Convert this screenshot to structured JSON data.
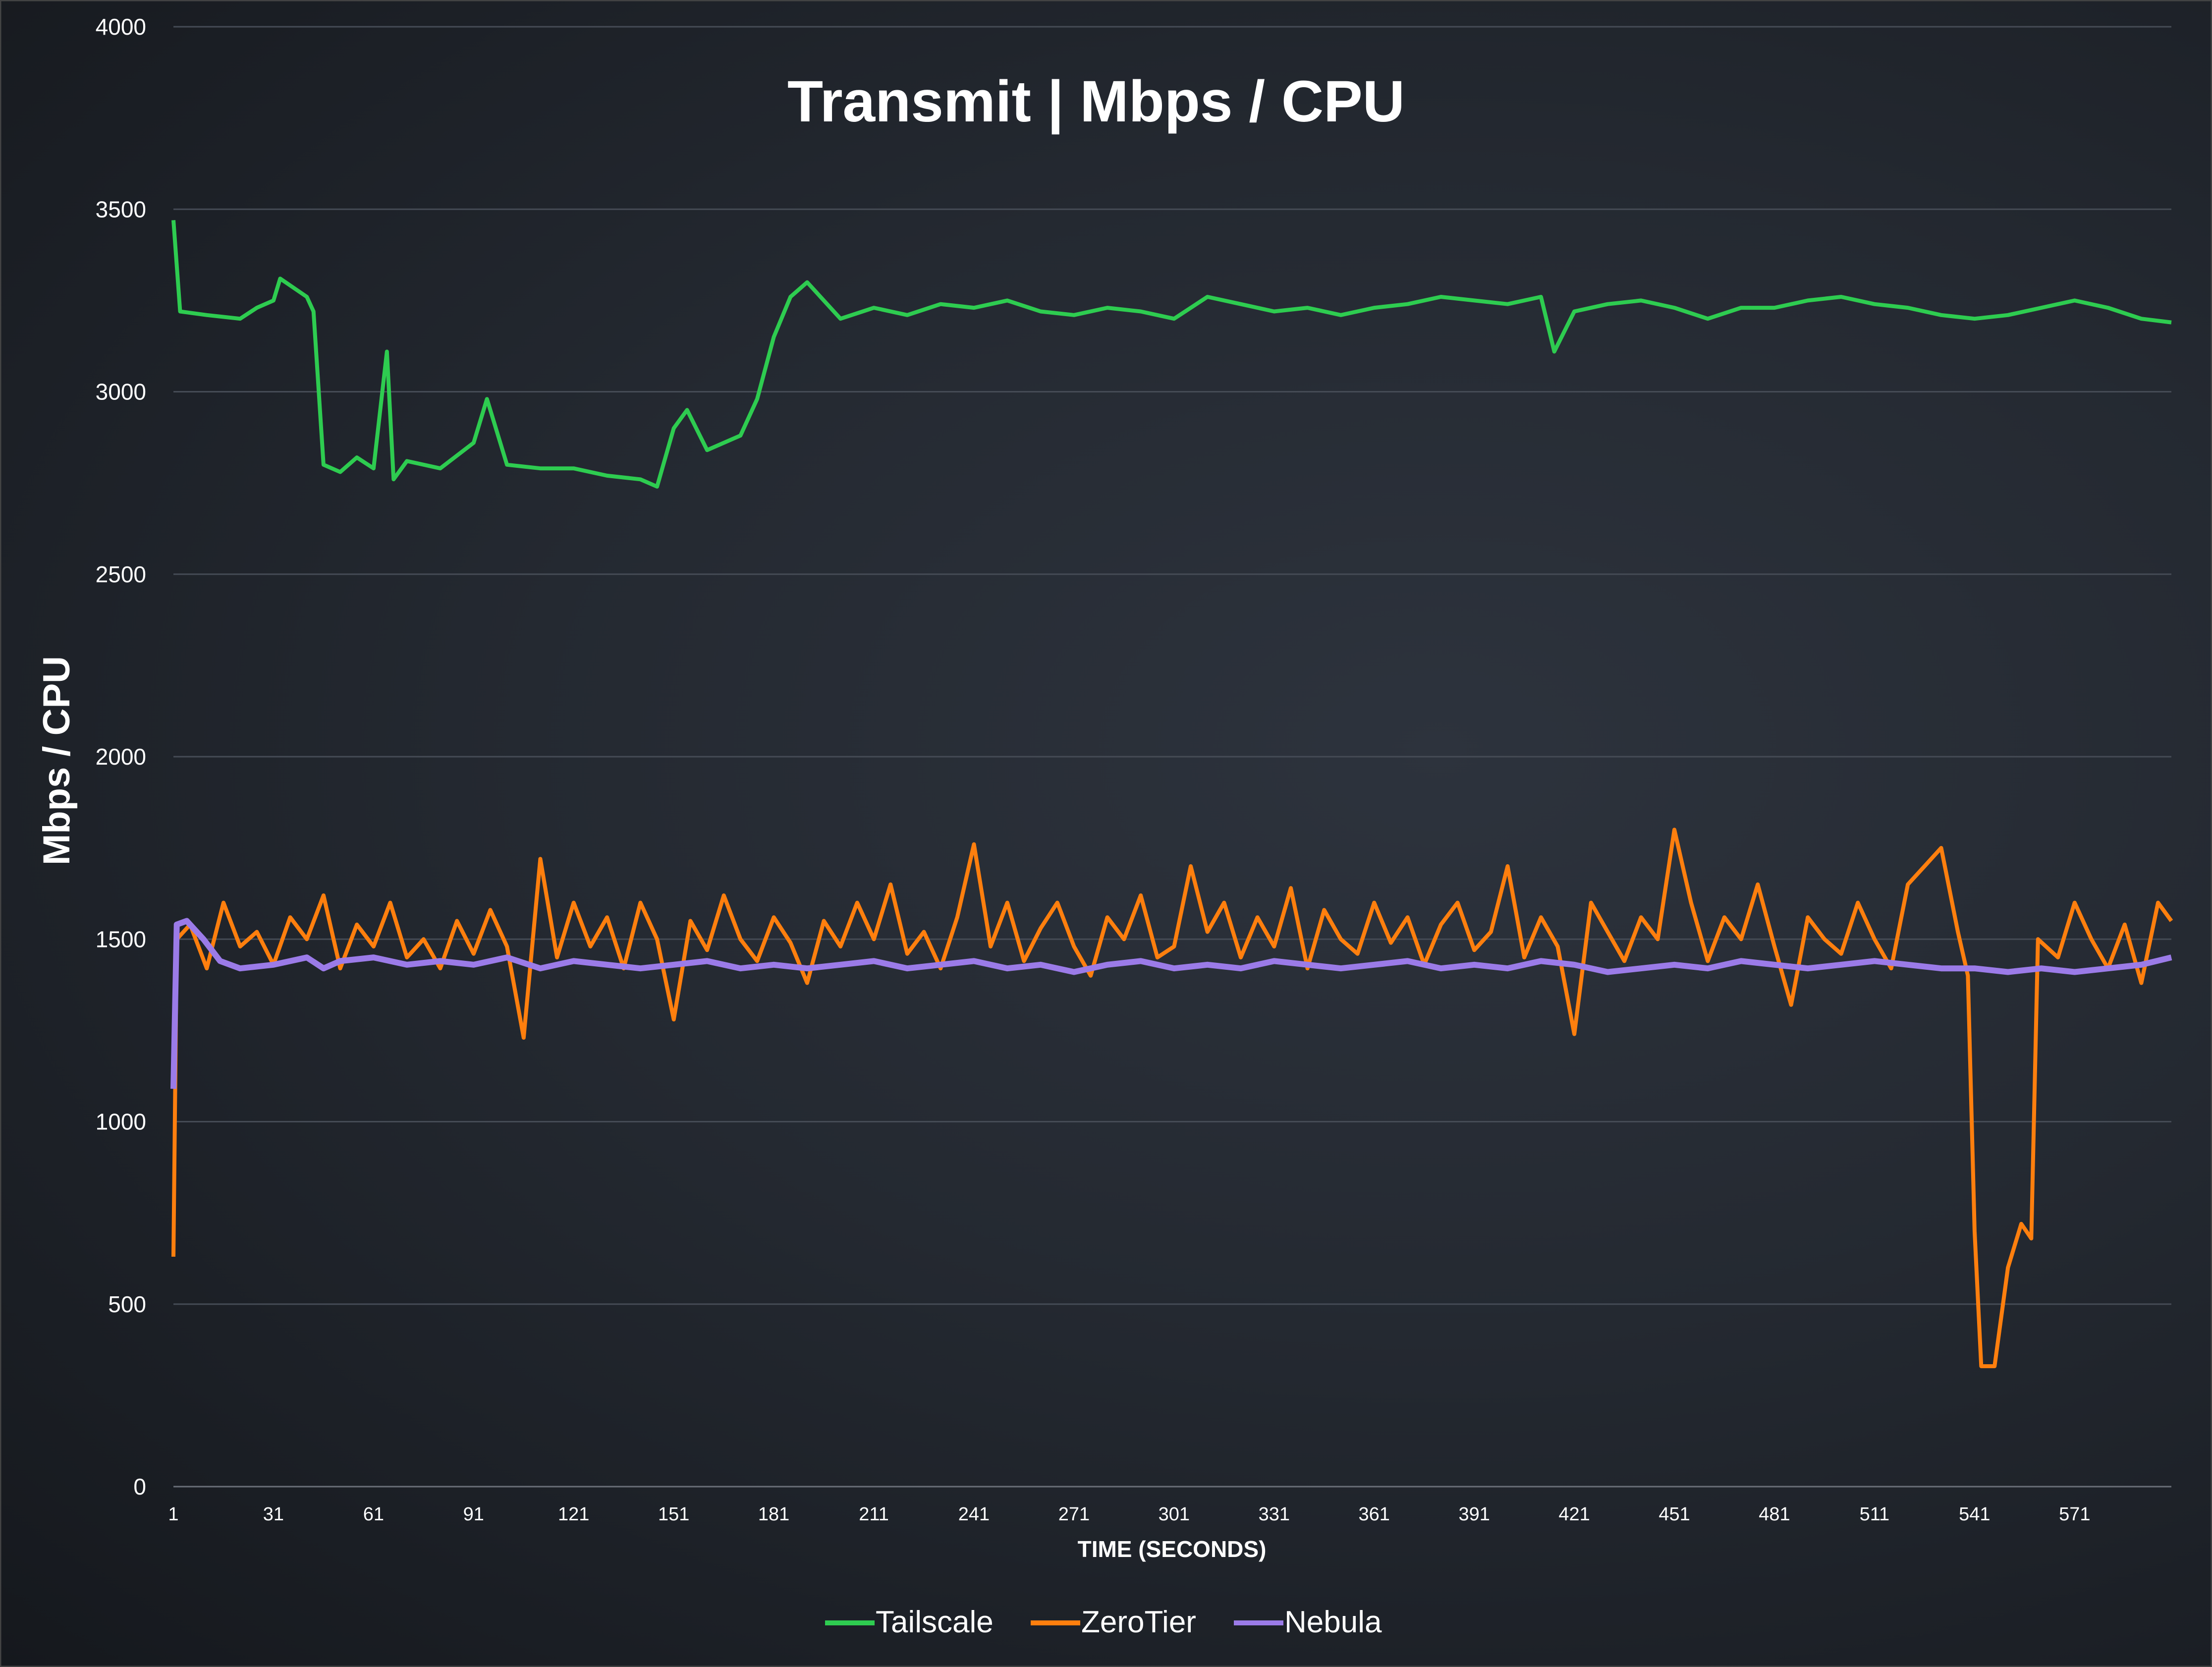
{
  "chart_data": {
    "type": "line",
    "title": "Transmit | Mbps / CPU",
    "xlabel": "TIME (SECONDS)",
    "ylabel": "Mbps / CPU",
    "ylim": [
      0,
      4000
    ],
    "xlim": [
      1,
      600
    ],
    "yticks": [
      0,
      500,
      1000,
      1500,
      2000,
      2500,
      3000,
      3500,
      4000
    ],
    "xticks": [
      1,
      31,
      61,
      91,
      121,
      151,
      181,
      211,
      241,
      271,
      301,
      331,
      361,
      391,
      421,
      451,
      481,
      511,
      541,
      571
    ],
    "grid": "horizontal",
    "legend": "bottom",
    "series": [
      {
        "name": "Tailscale",
        "color": "#2ecc50",
        "x": [
          1,
          3,
          11,
          21,
          26,
          31,
          33,
          41,
          43,
          46,
          51,
          56,
          61,
          65,
          67,
          71,
          81,
          91,
          95,
          101,
          111,
          121,
          131,
          141,
          146,
          151,
          155,
          161,
          171,
          176,
          181,
          186,
          191,
          201,
          211,
          221,
          231,
          241,
          251,
          261,
          271,
          281,
          291,
          301,
          311,
          321,
          331,
          341,
          351,
          361,
          371,
          381,
          391,
          401,
          411,
          415,
          421,
          431,
          441,
          451,
          461,
          471,
          481,
          491,
          501,
          511,
          521,
          531,
          541,
          551,
          561,
          571,
          581,
          591,
          600
        ],
        "y": [
          3470,
          3220,
          3210,
          3200,
          3230,
          3250,
          3310,
          3260,
          3220,
          2800,
          2780,
          2820,
          2790,
          3110,
          2760,
          2810,
          2790,
          2860,
          2980,
          2800,
          2790,
          2790,
          2770,
          2760,
          2740,
          2900,
          2950,
          2840,
          2880,
          2980,
          3150,
          3260,
          3300,
          3200,
          3230,
          3210,
          3240,
          3230,
          3250,
          3220,
          3210,
          3230,
          3220,
          3200,
          3260,
          3240,
          3220,
          3230,
          3210,
          3230,
          3240,
          3260,
          3250,
          3240,
          3260,
          3110,
          3220,
          3240,
          3250,
          3230,
          3200,
          3230,
          3230,
          3250,
          3260,
          3240,
          3230,
          3210,
          3200,
          3210,
          3230,
          3250,
          3230,
          3200,
          3190
        ]
      },
      {
        "name": "ZeroTier",
        "color": "#ff7f0e",
        "x": [
          1,
          2,
          6,
          11,
          16,
          21,
          26,
          31,
          36,
          41,
          46,
          51,
          56,
          61,
          66,
          71,
          76,
          81,
          86,
          91,
          96,
          101,
          106,
          111,
          116,
          121,
          126,
          131,
          136,
          141,
          146,
          151,
          156,
          161,
          166,
          171,
          176,
          181,
          186,
          191,
          196,
          201,
          206,
          211,
          216,
          221,
          226,
          231,
          236,
          241,
          246,
          251,
          256,
          261,
          266,
          271,
          276,
          281,
          286,
          291,
          296,
          301,
          306,
          311,
          316,
          321,
          326,
          331,
          336,
          341,
          346,
          351,
          356,
          361,
          366,
          371,
          376,
          381,
          386,
          391,
          396,
          401,
          406,
          411,
          416,
          421,
          426,
          431,
          436,
          441,
          446,
          451,
          456,
          461,
          466,
          471,
          476,
          481,
          486,
          491,
          496,
          501,
          506,
          511,
          516,
          521,
          526,
          531,
          536,
          539,
          541,
          543,
          547,
          551,
          555,
          558,
          560,
          566,
          571,
          576,
          581,
          586,
          591,
          596,
          600
        ],
        "y": [
          630,
          1500,
          1540,
          1420,
          1600,
          1480,
          1520,
          1430,
          1560,
          1500,
          1620,
          1420,
          1540,
          1480,
          1600,
          1450,
          1500,
          1420,
          1550,
          1460,
          1580,
          1480,
          1230,
          1720,
          1450,
          1600,
          1480,
          1560,
          1420,
          1600,
          1500,
          1280,
          1550,
          1470,
          1620,
          1500,
          1440,
          1560,
          1490,
          1380,
          1550,
          1480,
          1600,
          1500,
          1650,
          1460,
          1520,
          1420,
          1560,
          1760,
          1480,
          1600,
          1440,
          1530,
          1600,
          1480,
          1400,
          1560,
          1500,
          1620,
          1450,
          1480,
          1700,
          1520,
          1600,
          1450,
          1560,
          1480,
          1640,
          1420,
          1580,
          1500,
          1460,
          1600,
          1490,
          1560,
          1430,
          1540,
          1600,
          1470,
          1520,
          1700,
          1450,
          1560,
          1480,
          1240,
          1600,
          1520,
          1440,
          1560,
          1500,
          1800,
          1600,
          1440,
          1560,
          1500,
          1650,
          1480,
          1320,
          1560,
          1500,
          1460,
          1600,
          1500,
          1420,
          1650,
          1700,
          1750,
          1520,
          1400,
          700,
          330,
          330,
          600,
          720,
          680,
          1500,
          1450,
          1600,
          1500,
          1420,
          1540,
          1380,
          1600,
          1550
        ]
      },
      {
        "name": "Nebula",
        "color": "#9b7be8",
        "x": [
          1,
          2,
          5,
          10,
          15,
          21,
          31,
          41,
          46,
          51,
          61,
          71,
          81,
          91,
          101,
          111,
          121,
          131,
          141,
          151,
          161,
          171,
          181,
          191,
          201,
          211,
          221,
          231,
          241,
          251,
          261,
          271,
          281,
          291,
          301,
          311,
          321,
          331,
          341,
          351,
          361,
          371,
          381,
          391,
          401,
          411,
          421,
          431,
          441,
          451,
          461,
          471,
          481,
          491,
          501,
          511,
          521,
          531,
          541,
          551,
          561,
          571,
          581,
          591,
          600
        ],
        "y": [
          1090,
          1540,
          1550,
          1500,
          1440,
          1420,
          1430,
          1450,
          1420,
          1440,
          1450,
          1430,
          1440,
          1430,
          1450,
          1420,
          1440,
          1430,
          1420,
          1430,
          1440,
          1420,
          1430,
          1420,
          1430,
          1440,
          1420,
          1430,
          1440,
          1420,
          1430,
          1410,
          1430,
          1440,
          1420,
          1430,
          1420,
          1440,
          1430,
          1420,
          1430,
          1440,
          1420,
          1430,
          1420,
          1440,
          1430,
          1410,
          1420,
          1430,
          1420,
          1440,
          1430,
          1420,
          1430,
          1440,
          1430,
          1420,
          1420,
          1410,
          1420,
          1410,
          1420,
          1430,
          1450
        ]
      }
    ]
  }
}
